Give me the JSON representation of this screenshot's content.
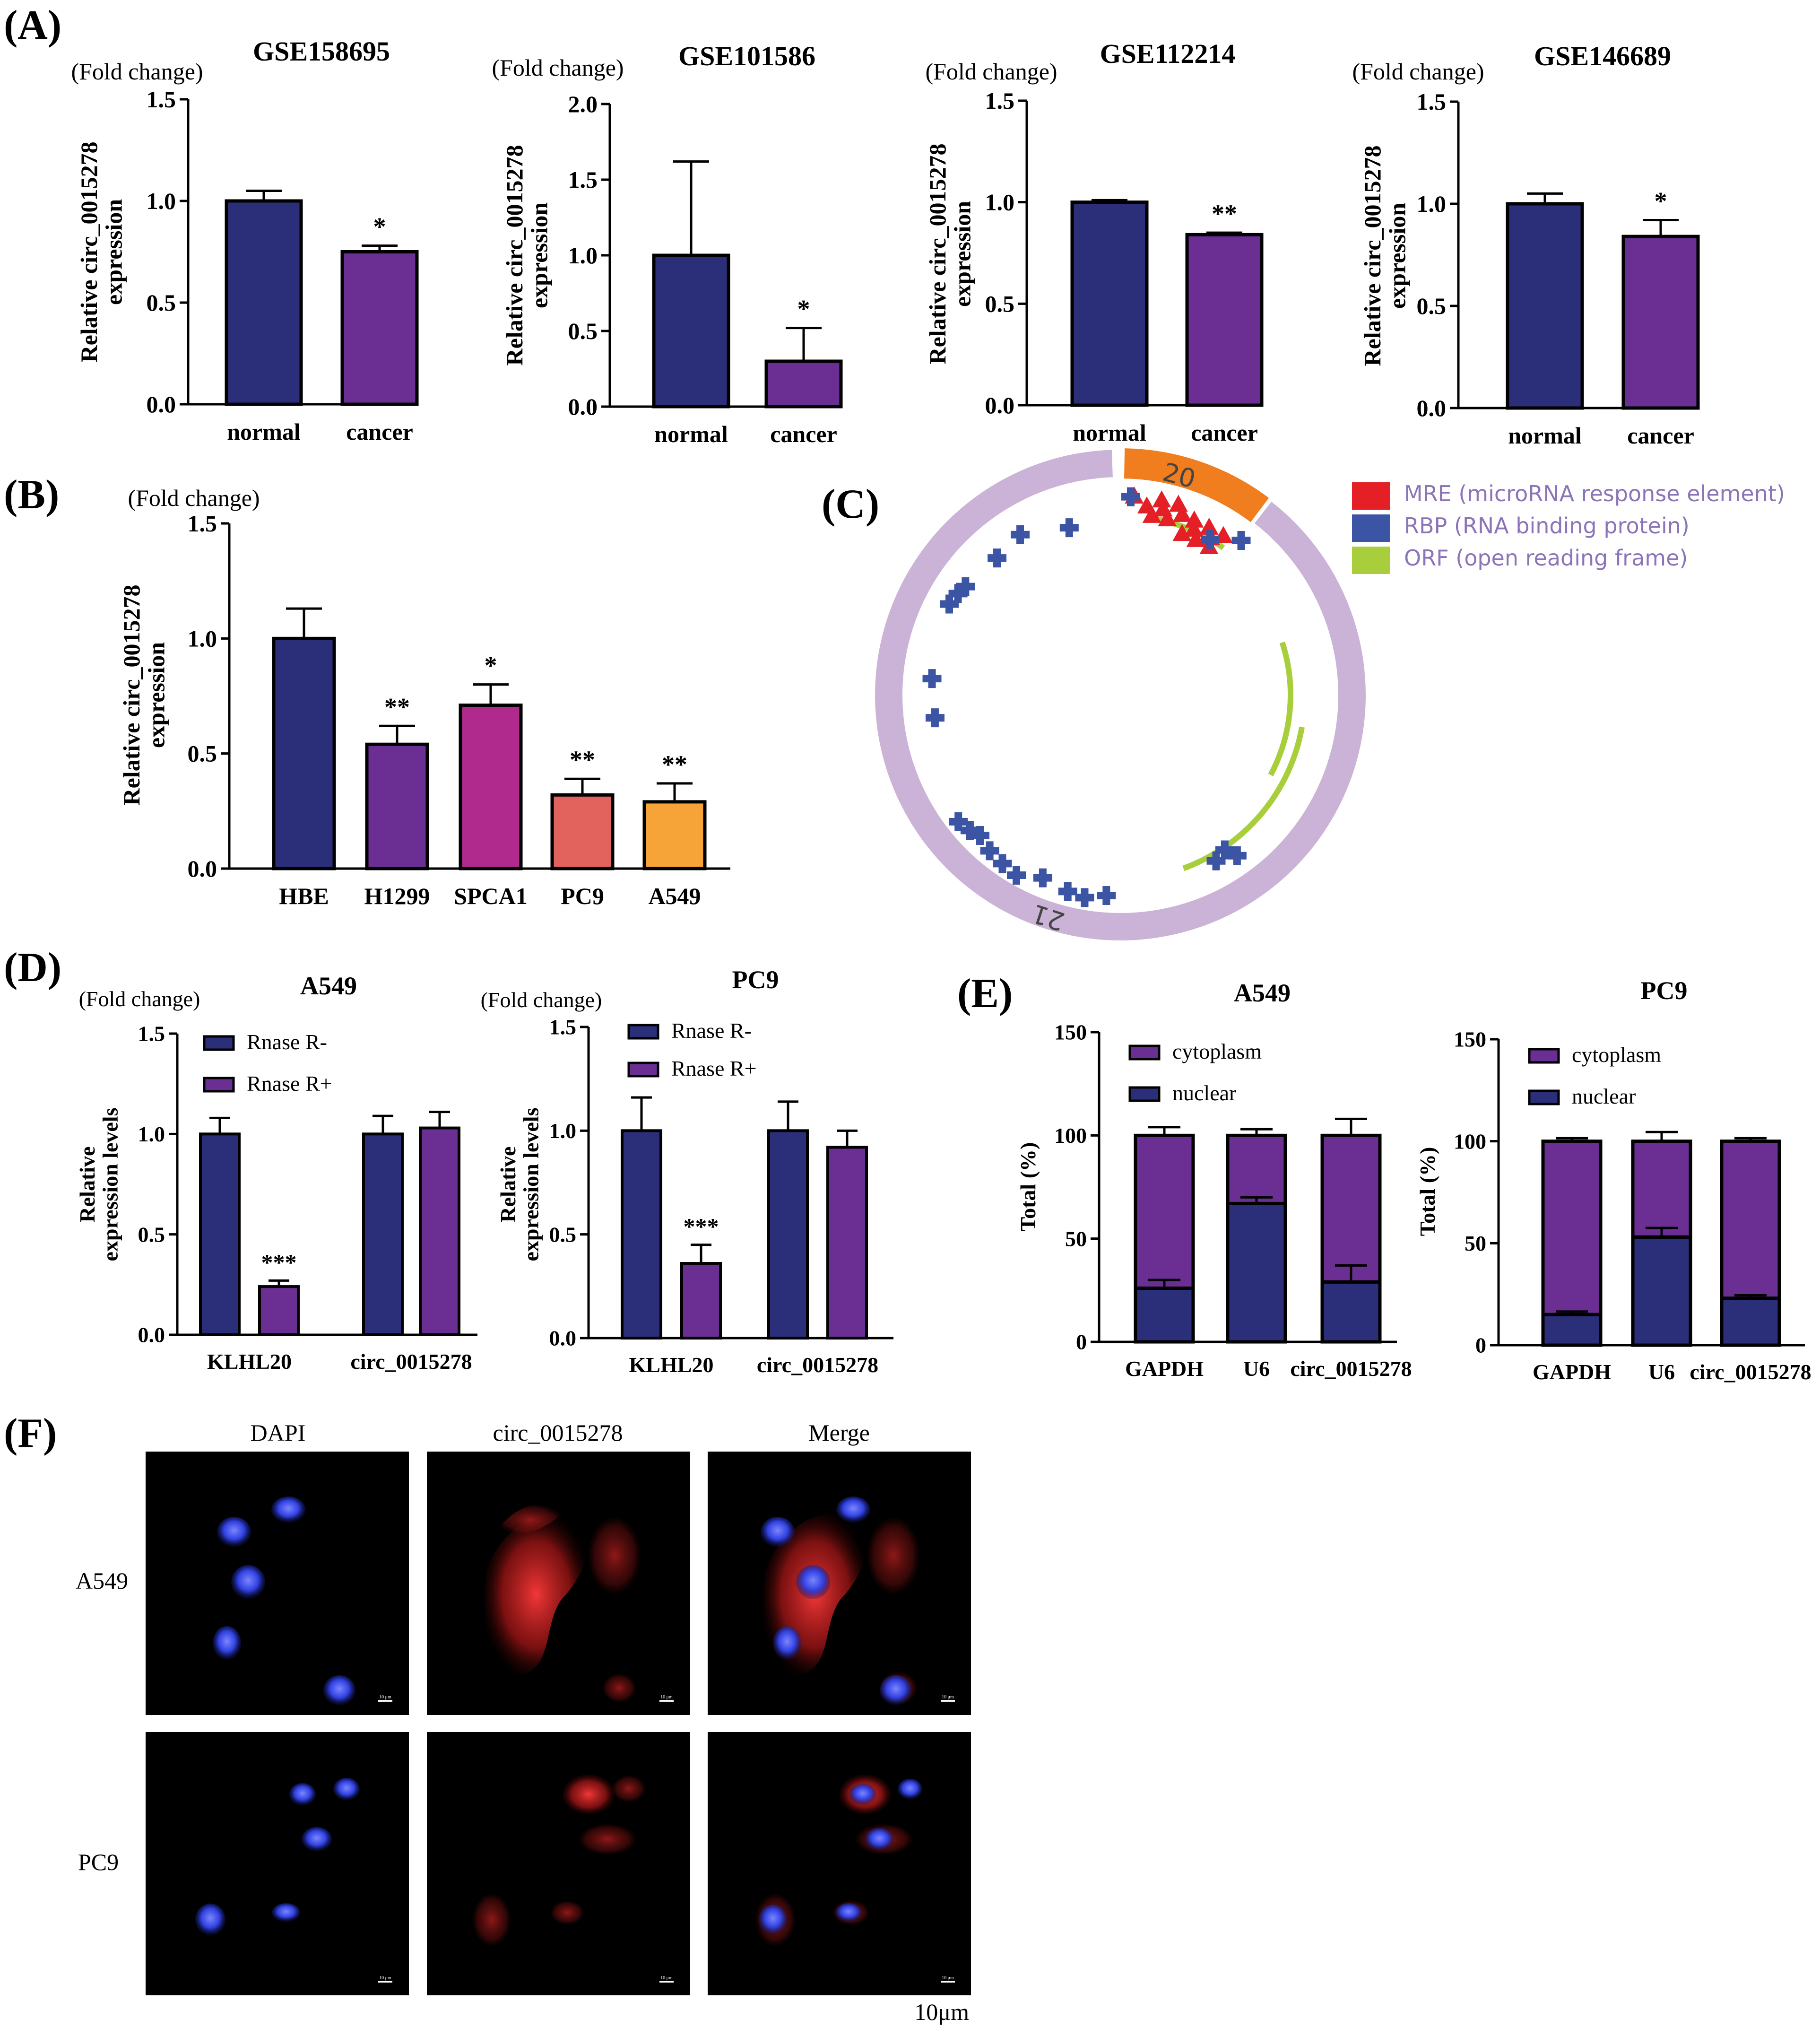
{
  "colors": {
    "navy": "#2b2f7a",
    "purple": "#6b2f93",
    "magenta": "#b02a8e",
    "salmon": "#e2625e",
    "orange": "#f6a338",
    "ring": "#cbb3d8",
    "ring_arc": "#f07d1e",
    "mre": "#e41f26",
    "rbp": "#3b54a3",
    "orf": "#a8cf3b"
  },
  "panel_labels": {
    "a": "(A)",
    "b": "(B)",
    "c": "(C)",
    "d": "(D)",
    "e": "(E)",
    "f": "(F)"
  },
  "chart_data": [
    {
      "id": "a1",
      "type": "bar",
      "title": "GSE158695",
      "unit_label": "(Fold change)",
      "ylabel": [
        "Relative circ_0015278",
        "expression"
      ],
      "categories": [
        "normal",
        "cancer"
      ],
      "values": [
        1.0,
        0.75
      ],
      "errors": [
        0.05,
        0.03
      ],
      "significance": [
        "",
        "*"
      ],
      "ylim": [
        0,
        1.5
      ],
      "yticks": [
        0,
        0.5,
        1.0,
        1.5
      ],
      "ytick_labels": [
        "0.0",
        "0.5",
        "1.0",
        "1.5"
      ],
      "colors": [
        "navy",
        "purple"
      ]
    },
    {
      "id": "a2",
      "type": "bar",
      "title": "GSE101586",
      "unit_label": "(Fold change)",
      "ylabel": [
        "Relative circ_0015278",
        "expression"
      ],
      "categories": [
        "normal",
        "cancer"
      ],
      "values": [
        1.0,
        0.3
      ],
      "errors": [
        0.62,
        0.22
      ],
      "significance": [
        "",
        "*"
      ],
      "ylim": [
        0,
        2.0
      ],
      "yticks": [
        0,
        0.5,
        1.0,
        1.5,
        2.0
      ],
      "ytick_labels": [
        "0.0",
        "0.5",
        "1.0",
        "1.5",
        "2.0"
      ],
      "colors": [
        "navy",
        "purple"
      ]
    },
    {
      "id": "a3",
      "type": "bar",
      "title": "GSE112214",
      "unit_label": "(Fold change)",
      "ylabel": [
        "Relative circ_0015278",
        "expression"
      ],
      "categories": [
        "normal",
        "cancer"
      ],
      "values": [
        1.0,
        0.84
      ],
      "errors": [
        0.01,
        0.01
      ],
      "significance": [
        "",
        "**"
      ],
      "ylim": [
        0,
        1.5
      ],
      "yticks": [
        0,
        0.5,
        1.0,
        1.5
      ],
      "ytick_labels": [
        "0.0",
        "0.5",
        "1.0",
        "1.5"
      ],
      "colors": [
        "navy",
        "purple"
      ]
    },
    {
      "id": "a4",
      "type": "bar",
      "title": "GSE146689",
      "unit_label": "(Fold change)",
      "ylabel": [
        "Relative circ_0015278",
        "expression"
      ],
      "categories": [
        "normal",
        "cancer"
      ],
      "values": [
        1.0,
        0.84
      ],
      "errors": [
        0.05,
        0.08
      ],
      "significance": [
        "",
        "*"
      ],
      "ylim": [
        0,
        1.5
      ],
      "yticks": [
        0,
        0.5,
        1.0,
        1.5
      ],
      "ytick_labels": [
        "0.0",
        "0.5",
        "1.0",
        "1.5"
      ],
      "colors": [
        "navy",
        "purple"
      ]
    },
    {
      "id": "b",
      "type": "bar",
      "title": "",
      "unit_label": "(Fold change)",
      "ylabel": [
        "Relative circ_0015278",
        "expression"
      ],
      "categories": [
        "HBE",
        "H1299",
        "SPCA1",
        "PC9",
        "A549"
      ],
      "values": [
        1.0,
        0.54,
        0.71,
        0.32,
        0.29
      ],
      "errors": [
        0.13,
        0.08,
        0.09,
        0.07,
        0.08
      ],
      "significance": [
        "",
        "**",
        "*",
        "**",
        "**"
      ],
      "ylim": [
        0,
        1.5
      ],
      "yticks": [
        0,
        0.5,
        1.0,
        1.5
      ],
      "ytick_labels": [
        "0.0",
        "0.5",
        "1.0",
        "1.5"
      ],
      "colors": [
        "navy",
        "purple",
        "magenta",
        "salmon",
        "orange"
      ]
    },
    {
      "id": "d1",
      "type": "bar",
      "title": "A549",
      "unit_label": "(Fold change)",
      "ylabel": [
        "Relative",
        "expression levels"
      ],
      "categories": [
        "KLHL20",
        "circ_0015278"
      ],
      "series": [
        {
          "name": "Rnase R-",
          "values": [
            1.0,
            1.0
          ],
          "errors": [
            0.08,
            0.09
          ],
          "color": "navy"
        },
        {
          "name": "Rnase R+",
          "values": [
            0.24,
            1.03
          ],
          "errors": [
            0.03,
            0.08
          ],
          "color": "purple"
        }
      ],
      "significance": [
        [
          "",
          "***"
        ],
        [
          "",
          ""
        ]
      ],
      "ylim": [
        0,
        1.5
      ],
      "yticks": [
        0,
        0.5,
        1.0,
        1.5
      ],
      "ytick_labels": [
        "0.0",
        "0.5",
        "1.0",
        "1.5"
      ]
    },
    {
      "id": "d2",
      "type": "bar",
      "title": "PC9",
      "unit_label": "(Fold change)",
      "ylabel": [
        "Relative",
        "expression levels"
      ],
      "categories": [
        "KLHL20",
        "circ_0015278"
      ],
      "series": [
        {
          "name": "Rnase R-",
          "values": [
            1.0,
            1.0
          ],
          "errors": [
            0.16,
            0.14
          ],
          "color": "navy"
        },
        {
          "name": "Rnase R+",
          "values": [
            0.36,
            0.92
          ],
          "errors": [
            0.09,
            0.08
          ],
          "color": "purple"
        }
      ],
      "significance": [
        [
          "",
          "***"
        ],
        [
          "",
          ""
        ]
      ],
      "ylim": [
        0,
        1.5
      ],
      "yticks": [
        0,
        0.5,
        1.0,
        1.5
      ],
      "ytick_labels": [
        "0.0",
        "0.5",
        "1.0",
        "1.5"
      ]
    },
    {
      "id": "e1",
      "type": "bar",
      "stacked": true,
      "title": "A549",
      "ylabel": [
        "Total (%)"
      ],
      "categories": [
        "GAPDH",
        "U6",
        "circ_0015278"
      ],
      "series": [
        {
          "name": "cytoplasm",
          "values": [
            74,
            33,
            71
          ],
          "errors": [
            4,
            3,
            8
          ],
          "color": "purple"
        },
        {
          "name": "nuclear",
          "values": [
            26,
            67,
            29
          ],
          "errors": [
            4,
            3,
            8
          ],
          "color": "navy"
        }
      ],
      "ylim": [
        0,
        150
      ],
      "yticks": [
        0,
        50,
        100,
        150
      ],
      "ytick_labels": [
        "0",
        "50",
        "100",
        "150"
      ]
    },
    {
      "id": "e2",
      "type": "bar",
      "stacked": true,
      "title": "PC9",
      "ylabel": [
        "Total (%)"
      ],
      "categories": [
        "GAPDH",
        "U6",
        "circ_0015278"
      ],
      "series": [
        {
          "name": "cytoplasm",
          "values": [
            85,
            47,
            77
          ],
          "errors": [
            1.5,
            4.5,
            1.5
          ],
          "color": "purple"
        },
        {
          "name": "nuclear",
          "values": [
            15,
            53,
            23
          ],
          "errors": [
            1.5,
            4.5,
            1.5
          ],
          "color": "navy"
        }
      ],
      "ylim": [
        0,
        150
      ],
      "yticks": [
        0,
        50,
        100,
        150
      ],
      "ytick_labels": [
        "0",
        "50",
        "100",
        "150"
      ]
    }
  ],
  "circ_map": {
    "legend": [
      {
        "label": "MRE (microRNA response element)",
        "color": "mre"
      },
      {
        "label": "RBP (RNA binding protein)",
        "color": "rbp"
      },
      {
        "label": "ORF (open reading frame)",
        "color": "orf"
      }
    ],
    "ring_labels": [
      "20",
      "21"
    ]
  },
  "microscopy": {
    "columns": [
      "DAPI",
      "circ_0015278",
      "Merge"
    ],
    "rows": [
      "A549",
      "PC9"
    ],
    "scale_label": "10μm",
    "scale_inset": "10 μm"
  }
}
